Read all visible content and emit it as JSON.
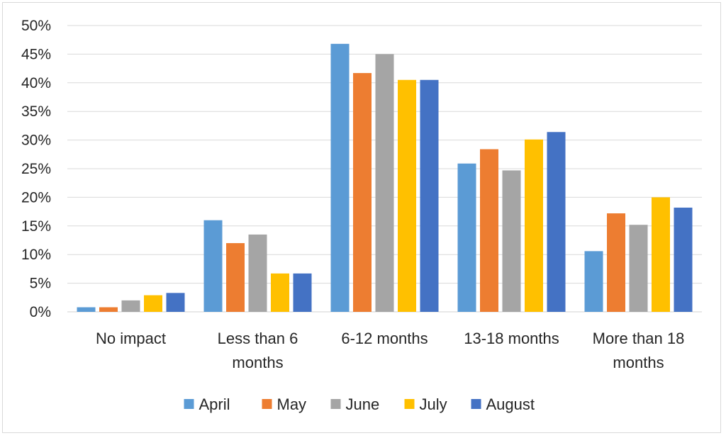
{
  "chart_data": {
    "type": "bar",
    "categories": [
      [
        "No impact"
      ],
      [
        "Less than 6",
        "months"
      ],
      [
        "6-12 months"
      ],
      [
        "13-18 months"
      ],
      [
        "More than 18",
        "months"
      ]
    ],
    "series": [
      {
        "name": "April",
        "color": "#5b9bd5",
        "values": [
          0.8,
          16.0,
          46.8,
          25.9,
          10.6
        ]
      },
      {
        "name": "May",
        "color": "#ed7d31",
        "values": [
          0.8,
          12.0,
          41.7,
          28.4,
          17.2
        ]
      },
      {
        "name": "June",
        "color": "#a5a5a5",
        "values": [
          2.0,
          13.5,
          45.0,
          24.7,
          15.2
        ]
      },
      {
        "name": "July",
        "color": "#ffc000",
        "values": [
          2.9,
          6.7,
          40.5,
          30.1,
          20.0
        ]
      },
      {
        "name": "August",
        "color": "#4472c4",
        "values": [
          3.3,
          6.7,
          40.5,
          31.4,
          18.2
        ]
      }
    ],
    "yticks": [
      "0%",
      "5%",
      "10%",
      "15%",
      "20%",
      "25%",
      "30%",
      "35%",
      "40%",
      "45%",
      "50%"
    ],
    "ylim": [
      0,
      50
    ],
    "grid": true,
    "legend_position": "bottom"
  }
}
